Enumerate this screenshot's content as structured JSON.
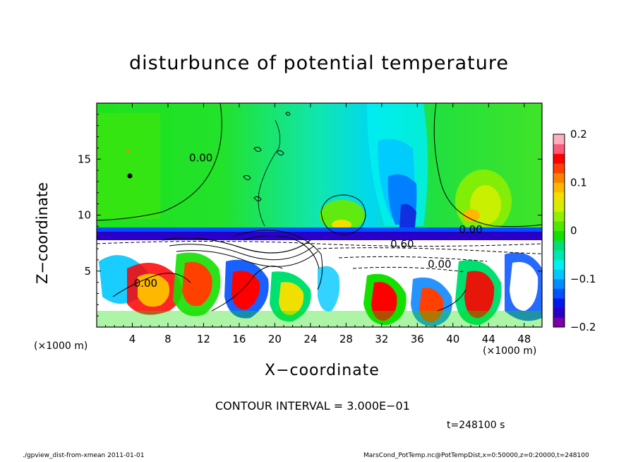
{
  "chart_data": {
    "type": "heatmap",
    "title": "disturbunce of potential temperature",
    "xlabel": "X−coordinate",
    "ylabel": "Z−coordinate",
    "x_unit_label_left": "(×1000 m)",
    "x_unit_label_right": "(×1000 m)",
    "xlim": [
      0,
      50
    ],
    "ylim": [
      0,
      20
    ],
    "x_ticks": [
      {
        "value": 4,
        "label": "4"
      },
      {
        "value": 8,
        "label": "8"
      },
      {
        "value": 12,
        "label": "12"
      },
      {
        "value": 16,
        "label": "16"
      },
      {
        "value": 20,
        "label": "20"
      },
      {
        "value": 24,
        "label": "24"
      },
      {
        "value": 28,
        "label": "28"
      },
      {
        "value": 32,
        "label": "32"
      },
      {
        "value": 36,
        "label": "36"
      },
      {
        "value": 40,
        "label": "40"
      },
      {
        "value": 44,
        "label": "44"
      },
      {
        "value": 48,
        "label": "48"
      }
    ],
    "y_ticks": [
      {
        "value": 5,
        "label": "5"
      },
      {
        "value": 10,
        "label": "10"
      },
      {
        "value": 15,
        "label": "15"
      }
    ],
    "colorbar": {
      "range": [
        -0.2,
        0.2
      ],
      "ticks": [
        {
          "value": 0.2,
          "label": "0.2"
        },
        {
          "value": 0.1,
          "label": "0.1"
        },
        {
          "value": 0,
          "label": "0"
        },
        {
          "value": -0.1,
          "label": "−0.1"
        },
        {
          "value": -0.2,
          "label": "−0.2"
        }
      ],
      "colors": [
        "#7a00a8",
        "#2a00c8",
        "#0018e8",
        "#0050ff",
        "#008cff",
        "#00c8ff",
        "#00f0f0",
        "#00e8b0",
        "#00e070",
        "#14e000",
        "#50e800",
        "#90f000",
        "#d0f000",
        "#f0e000",
        "#ffb800",
        "#ff8000",
        "#ff4000",
        "#ff0000",
        "#ff5a78",
        "#ffb0c0"
      ]
    },
    "contour_labels": [
      {
        "x": 11.7,
        "z": 15.1,
        "text": "0.00"
      },
      {
        "x": 42.0,
        "z": 8.7,
        "text": "0.00"
      },
      {
        "x": 34.3,
        "z": 7.4,
        "text": "0.60"
      },
      {
        "x": 38.5,
        "z": 5.6,
        "text": "0.00"
      },
      {
        "x": 5.5,
        "z": 3.9,
        "text": "0.00"
      }
    ],
    "contour_interval_text": "CONTOUR INTERVAL = 3.000E−01",
    "time_text": "t=248100 s"
  },
  "footer": {
    "left": "./gpview_dist-from-xmean  2011-01-01",
    "right": "MarsCond_PotTemp.nc@PotTempDist,x=0:50000,z=0:20000,t=248100"
  }
}
